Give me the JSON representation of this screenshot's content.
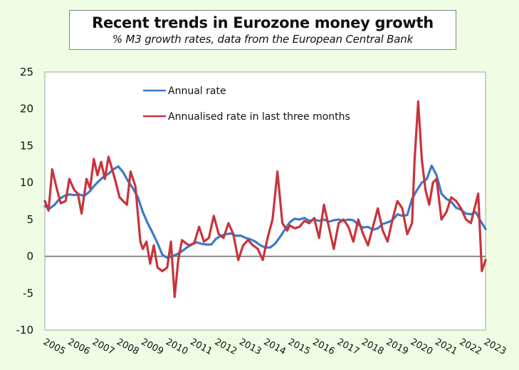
{
  "chart_data": {
    "type": "line",
    "title": "Recent trends in Eurozone money growth",
    "subtitle": "% M3 growth rates, data from the European Central Bank",
    "xlabel": "",
    "ylabel": "",
    "ylim": [
      -10,
      25
    ],
    "yticks": [
      25,
      20,
      15,
      10,
      5,
      0,
      -5,
      -10
    ],
    "xlim": [
      2005,
      2023
    ],
    "xticks": [
      "2005",
      "2006",
      "2007",
      "2008",
      "2009",
      "2010",
      "2011",
      "2012",
      "2013",
      "2014",
      "2015",
      "2016",
      "2017",
      "2018",
      "2019",
      "2020",
      "2021",
      "2022",
      "2023"
    ],
    "grid": false,
    "zero_line": true,
    "legend_position": "top-center (inside plot)",
    "series": [
      {
        "name": "Annual rate",
        "color": "#3b7ac8",
        "x": [
          2005.0,
          2005.2,
          2005.4,
          2005.6,
          2005.8,
          2006.0,
          2006.2,
          2006.4,
          2006.6,
          2006.8,
          2007.0,
          2007.2,
          2007.4,
          2007.6,
          2007.8,
          2008.0,
          2008.2,
          2008.4,
          2008.6,
          2008.8,
          2009.0,
          2009.2,
          2009.4,
          2009.6,
          2009.8,
          2010.0,
          2010.2,
          2010.4,
          2010.6,
          2010.8,
          2011.0,
          2011.2,
          2011.4,
          2011.6,
          2011.8,
          2012.0,
          2012.2,
          2012.4,
          2012.6,
          2012.8,
          2013.0,
          2013.2,
          2013.4,
          2013.6,
          2013.8,
          2014.0,
          2014.2,
          2014.4,
          2014.6,
          2014.8,
          2015.0,
          2015.2,
          2015.4,
          2015.6,
          2015.8,
          2016.0,
          2016.2,
          2016.4,
          2016.6,
          2016.8,
          2017.0,
          2017.2,
          2017.4,
          2017.6,
          2017.8,
          2018.0,
          2018.2,
          2018.4,
          2018.6,
          2018.8,
          2019.0,
          2019.2,
          2019.4,
          2019.6,
          2019.8,
          2020.0,
          2020.2,
          2020.4,
          2020.6,
          2020.8,
          2021.0,
          2021.2,
          2021.4,
          2021.6,
          2021.8,
          2022.0,
          2022.2,
          2022.4,
          2022.6,
          2022.8,
          2023.0
        ],
        "values": [
          6.8,
          6.5,
          7.0,
          7.8,
          8.2,
          8.4,
          8.3,
          8.4,
          8.2,
          8.7,
          9.5,
          10.2,
          10.8,
          11.2,
          11.8,
          12.2,
          11.4,
          10.2,
          9.2,
          8.0,
          6.0,
          4.5,
          3.2,
          1.8,
          0.2,
          -0.2,
          0.0,
          0.3,
          0.7,
          1.2,
          1.6,
          1.9,
          1.7,
          1.6,
          1.6,
          2.4,
          2.8,
          3.0,
          3.1,
          2.8,
          2.8,
          2.5,
          2.3,
          2.0,
          1.5,
          1.2,
          1.2,
          1.7,
          2.6,
          3.6,
          4.6,
          5.1,
          5.0,
          5.2,
          4.8,
          5.0,
          4.8,
          5.0,
          4.7,
          4.9,
          5.0,
          4.8,
          5.0,
          4.9,
          4.3,
          3.9,
          4.0,
          3.6,
          3.8,
          4.4,
          4.6,
          4.9,
          5.7,
          5.5,
          5.6,
          7.8,
          9.0,
          10.0,
          10.5,
          12.3,
          11.0,
          8.5,
          7.8,
          7.4,
          6.6,
          6.3,
          5.8,
          5.7,
          6.0,
          4.8,
          3.7
        ]
      },
      {
        "name": "Annualised rate in last three months",
        "color": "#c8343c",
        "x": [
          2005.0,
          2005.15,
          2005.3,
          2005.5,
          2005.65,
          2005.85,
          2006.0,
          2006.2,
          2006.35,
          2006.5,
          2006.7,
          2006.85,
          2007.0,
          2007.15,
          2007.3,
          2007.45,
          2007.6,
          2007.75,
          2007.9,
          2008.05,
          2008.2,
          2008.35,
          2008.5,
          2008.7,
          2008.9,
          2009.0,
          2009.15,
          2009.3,
          2009.45,
          2009.6,
          2009.8,
          2010.0,
          2010.15,
          2010.3,
          2010.45,
          2010.6,
          2010.75,
          2010.9,
          2011.1,
          2011.3,
          2011.5,
          2011.7,
          2011.9,
          2012.1,
          2012.3,
          2012.5,
          2012.7,
          2012.9,
          2013.1,
          2013.3,
          2013.5,
          2013.7,
          2013.9,
          2014.1,
          2014.3,
          2014.5,
          2014.7,
          2014.9,
          2015.0,
          2015.2,
          2015.4,
          2015.6,
          2015.8,
          2016.0,
          2016.2,
          2016.4,
          2016.6,
          2016.8,
          2017.0,
          2017.2,
          2017.4,
          2017.6,
          2017.8,
          2018.0,
          2018.2,
          2018.4,
          2018.6,
          2018.8,
          2019.0,
          2019.2,
          2019.4,
          2019.6,
          2019.8,
          2020.0,
          2020.1,
          2020.25,
          2020.4,
          2020.55,
          2020.7,
          2020.85,
          2021.0,
          2021.2,
          2021.4,
          2021.6,
          2021.8,
          2022.0,
          2022.2,
          2022.4,
          2022.55,
          2022.7,
          2022.85,
          2023.0
        ],
        "values": [
          7.5,
          6.2,
          11.8,
          9.0,
          7.2,
          7.5,
          10.5,
          9.0,
          8.5,
          5.8,
          10.5,
          9.2,
          13.2,
          11.0,
          12.8,
          10.5,
          13.5,
          11.8,
          10.0,
          8.0,
          7.5,
          7.0,
          11.5,
          9.5,
          2.0,
          1.0,
          2.0,
          -1.0,
          1.5,
          -1.5,
          -2.0,
          -1.5,
          2.0,
          -5.5,
          -0.5,
          2.2,
          1.8,
          1.5,
          1.8,
          4.0,
          2.0,
          2.5,
          5.5,
          3.0,
          2.5,
          4.5,
          3.0,
          -0.5,
          1.5,
          2.2,
          1.5,
          1.0,
          -0.5,
          2.5,
          5.0,
          11.5,
          4.5,
          3.5,
          4.2,
          3.8,
          4.0,
          4.8,
          4.5,
          5.2,
          2.5,
          7.0,
          4.0,
          1.0,
          4.5,
          5.0,
          4.0,
          2.0,
          5.0,
          3.0,
          1.5,
          4.0,
          6.5,
          3.5,
          2.0,
          5.0,
          7.5,
          6.5,
          3.0,
          4.5,
          13.0,
          21.0,
          13.0,
          9.0,
          7.0,
          10.0,
          10.5,
          5.0,
          6.0,
          8.0,
          7.5,
          6.5,
          5.0,
          4.5,
          6.5,
          8.5,
          -2.0,
          -0.5
        ]
      }
    ]
  }
}
